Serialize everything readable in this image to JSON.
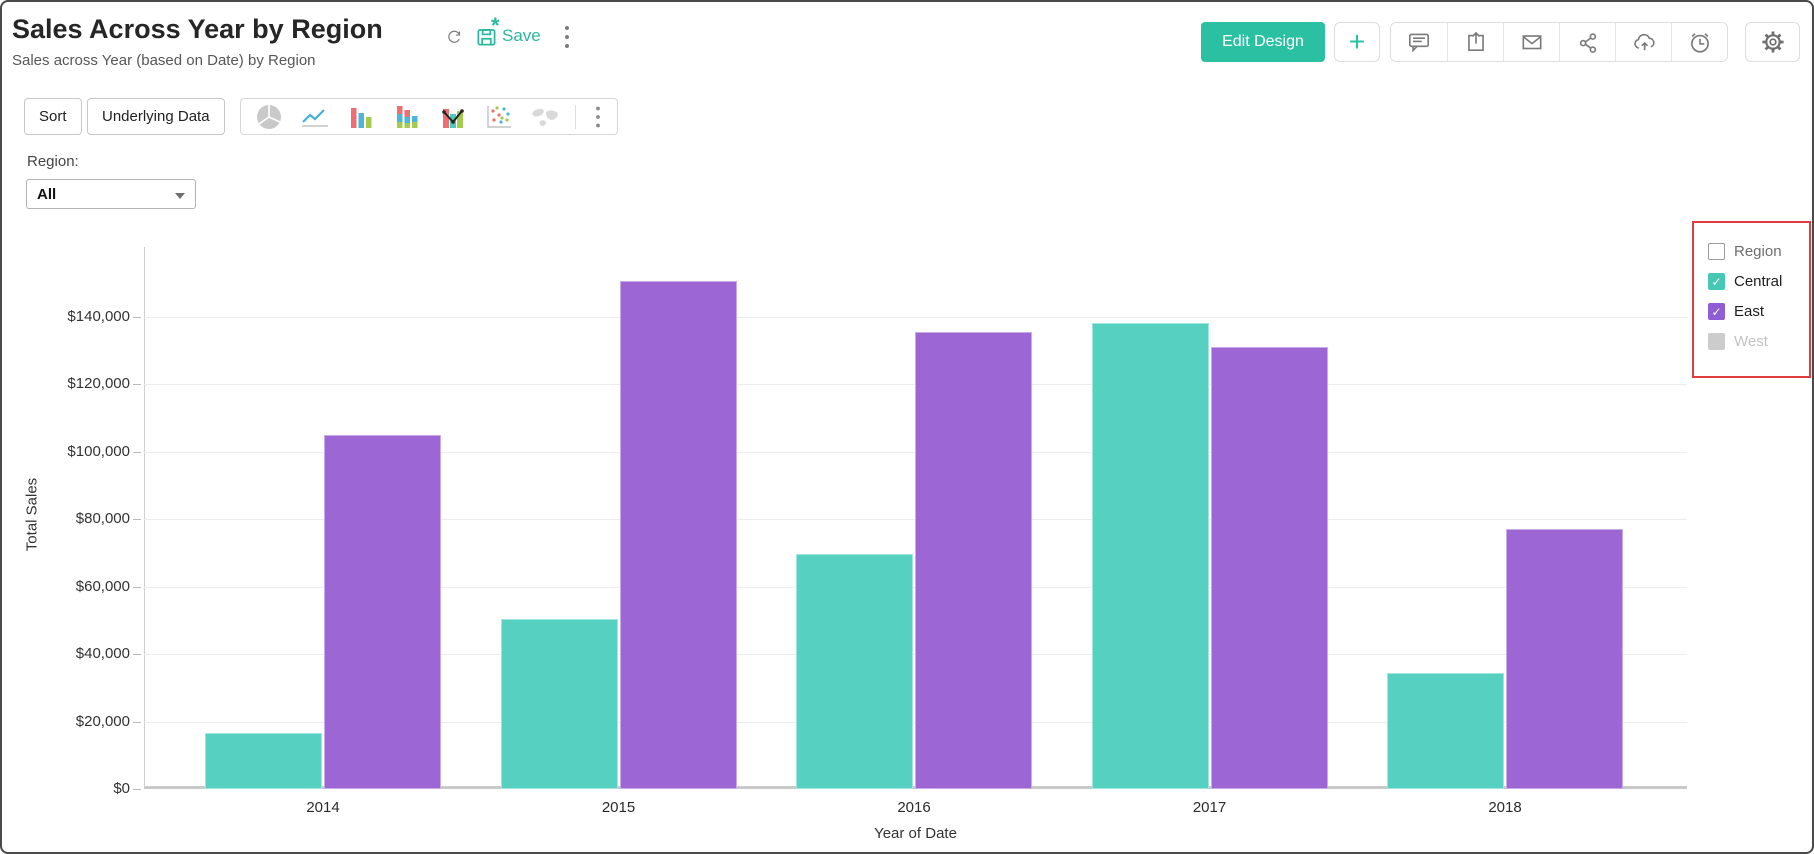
{
  "header": {
    "title": "Sales Across Year by Region",
    "subtitle": "Sales across Year (based on Date) by Region",
    "refresh_icon": "refresh-icon",
    "save": {
      "label": "Save",
      "icon": "save-icon",
      "modified_marker": "*"
    },
    "more_icon": "kebab-menu-icon",
    "edit_design_button": "Edit Design",
    "add_button": "+",
    "action_icons": [
      "comment-icon",
      "export-icon",
      "email-icon",
      "share-icon",
      "cloud-upload-icon",
      "history-icon"
    ],
    "settings_icon": "gear-icon"
  },
  "toolbar": {
    "sort_button": "Sort",
    "underlying_data_button": "Underlying Data",
    "chart_type_icons": [
      "pie-chart-icon",
      "line-chart-icon",
      "bar-chart-icon",
      "stacked-bar-chart-icon",
      "combo-chart-icon",
      "scatter-chart-icon",
      "map-chart-icon"
    ],
    "more_icon": "kebab-menu-icon"
  },
  "filter": {
    "label": "Region:",
    "value": "All"
  },
  "legend": {
    "highlight_border_color": "#e23b3f",
    "items": [
      {
        "label": "Region",
        "checkbox": "unchecked",
        "checkbox_color": "#ffffff",
        "checkbox_border": "#9a9a9a",
        "label_color": "#6e6e6e"
      },
      {
        "label": "Central",
        "checkbox": "checked",
        "checkbox_color": "#46c8b4",
        "checkbox_border": "#46c8b4",
        "label_color": "#1e1e1e"
      },
      {
        "label": "East",
        "checkbox": "checked",
        "checkbox_color": "#8f5ed2",
        "checkbox_border": "#8f5ed2",
        "label_color": "#1e1e1e"
      },
      {
        "label": "West",
        "checkbox": "unchecked",
        "checkbox_color": "#cccccc",
        "checkbox_border": "#cccccc",
        "label_color": "#c2c2c2"
      }
    ]
  },
  "chart_data": {
    "type": "bar",
    "title": "Sales Across Year by Region",
    "categories": [
      "2014",
      "2015",
      "2016",
      "2017",
      "2018"
    ],
    "series": [
      {
        "name": "Central",
        "color": "#55d0c1",
        "values": [
          16500,
          50500,
          69500,
          138000,
          34500
        ]
      },
      {
        "name": "East",
        "color": "#9c66d4",
        "values": [
          105000,
          150500,
          135500,
          131000,
          77000
        ]
      }
    ],
    "xlabel": "Year of Date",
    "ylabel": "Total Sales",
    "ylim": [
      0,
      160000
    ],
    "ytick_step": 20000,
    "ytick_labels": [
      "$0",
      "$20,000",
      "$40,000",
      "$60,000",
      "$80,000",
      "$100,000",
      "$120,000",
      "$140,000"
    ],
    "grid": true,
    "legend_position": "right"
  },
  "colors": {
    "accent_teal": "#2bc0a2",
    "bar_central": "#55d0c1",
    "bar_east": "#9c66d4",
    "legend_highlight": "#e23b3f",
    "gridline": "#ececec"
  }
}
